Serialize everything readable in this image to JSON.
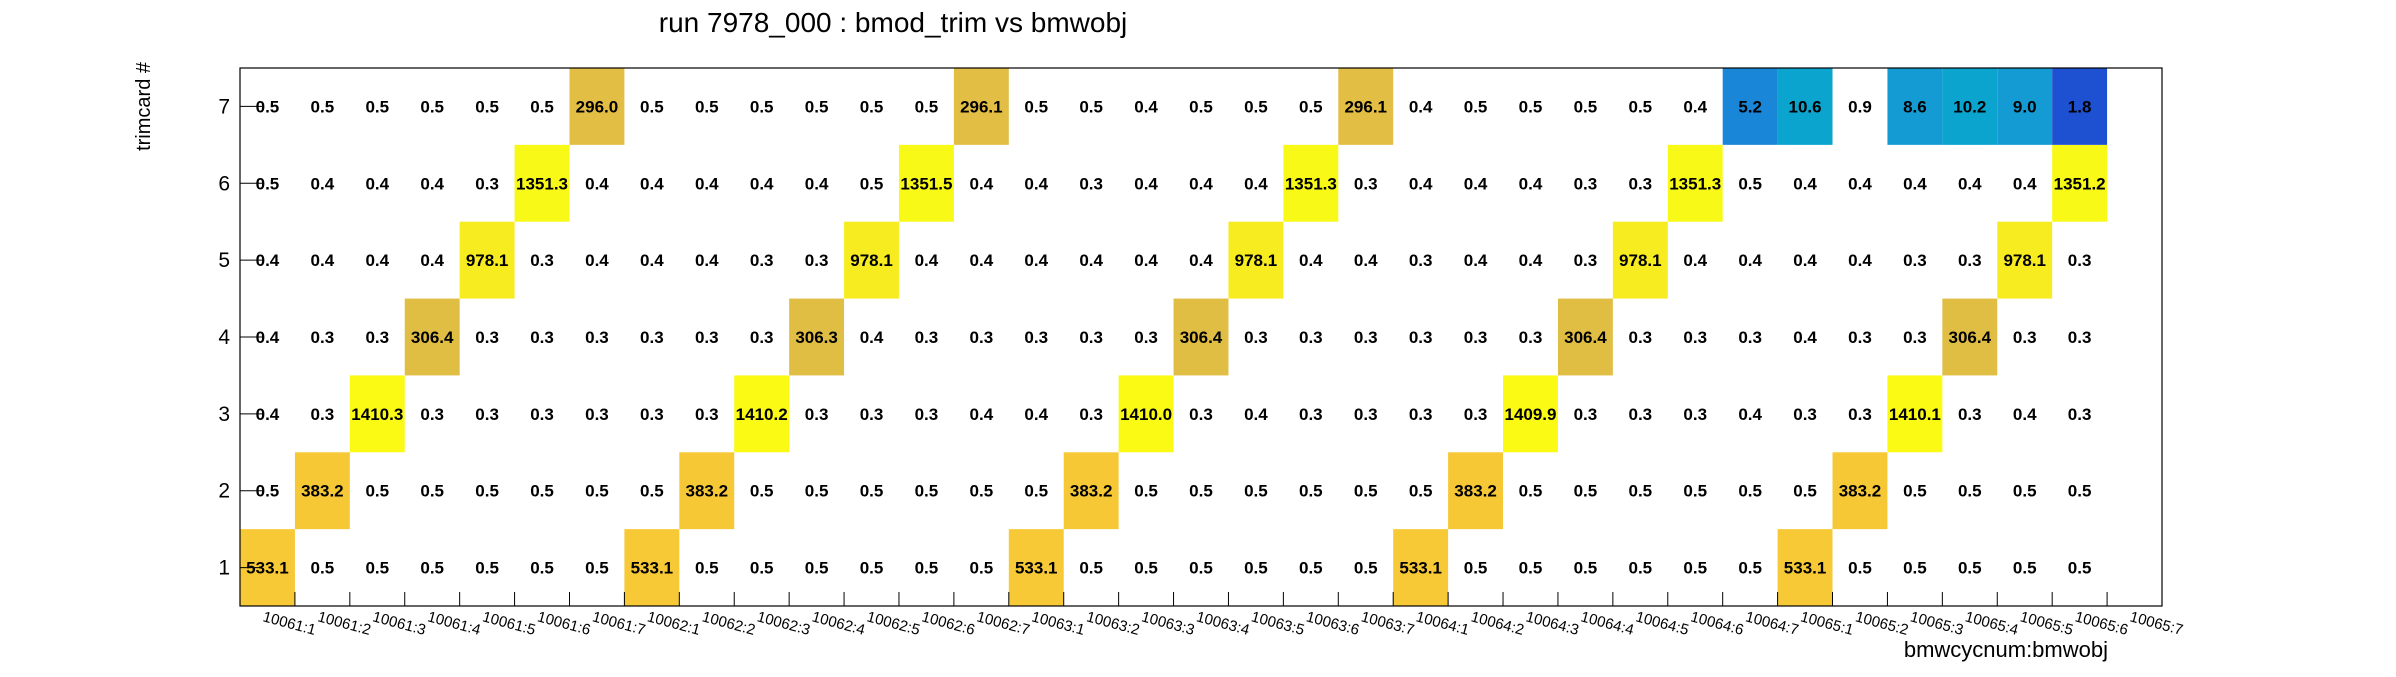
{
  "chart_data": {
    "type": "heatmap",
    "title": "run 7978_000 : bmod_trim vs bmwobj",
    "xlabel": "bmwcycnum:bmwobj",
    "ylabel": "trimcard #",
    "x_categories": [
      "10061:1",
      "10061:2",
      "10061:3",
      "10061:4",
      "10061:5",
      "10061:6",
      "10061:7",
      "10062:1",
      "10062:2",
      "10062:3",
      "10062:4",
      "10062:5",
      "10062:6",
      "10062:7",
      "10063:1",
      "10063:2",
      "10063:3",
      "10063:4",
      "10063:5",
      "10063:6",
      "10063:7",
      "10064:1",
      "10064:2",
      "10064:3",
      "10064:4",
      "10064:5",
      "10064:6",
      "10064:7",
      "10065:1",
      "10065:2",
      "10065:3",
      "10065:4",
      "10065:5",
      "10065:6",
      "10065:7"
    ],
    "y_categories": [
      "1",
      "2",
      "3",
      "4",
      "5",
      "6",
      "7"
    ],
    "values": [
      [
        533.1,
        0.5,
        0.5,
        0.5,
        0.5,
        0.5,
        0.5,
        533.1,
        0.5,
        0.5,
        0.5,
        0.5,
        0.5,
        0.5,
        533.1,
        0.5,
        0.5,
        0.5,
        0.5,
        0.5,
        0.5,
        533.1,
        0.5,
        0.5,
        0.5,
        0.5,
        0.5,
        0.5,
        533.1,
        0.5,
        0.5,
        0.5,
        0.5,
        0.5,
        null
      ],
      [
        0.5,
        383.2,
        0.5,
        0.5,
        0.5,
        0.5,
        0.5,
        0.5,
        383.2,
        0.5,
        0.5,
        0.5,
        0.5,
        0.5,
        0.5,
        383.2,
        0.5,
        0.5,
        0.5,
        0.5,
        0.5,
        0.5,
        383.2,
        0.5,
        0.5,
        0.5,
        0.5,
        0.5,
        0.5,
        383.2,
        0.5,
        0.5,
        0.5,
        0.5,
        null
      ],
      [
        0.4,
        0.3,
        1410.3,
        0.3,
        0.3,
        0.3,
        0.3,
        0.3,
        0.3,
        1410.2,
        0.3,
        0.3,
        0.3,
        0.4,
        0.4,
        0.3,
        1410.0,
        0.3,
        0.4,
        0.3,
        0.3,
        0.3,
        0.3,
        1409.9,
        0.3,
        0.3,
        0.3,
        0.4,
        0.3,
        0.3,
        1410.1,
        0.3,
        0.4,
        0.3,
        null
      ],
      [
        0.4,
        0.3,
        0.3,
        306.4,
        0.3,
        0.3,
        0.3,
        0.3,
        0.3,
        0.3,
        306.3,
        0.4,
        0.3,
        0.3,
        0.3,
        0.3,
        0.3,
        306.4,
        0.3,
        0.3,
        0.3,
        0.3,
        0.3,
        0.3,
        306.4,
        0.3,
        0.3,
        0.3,
        0.4,
        0.3,
        0.3,
        306.4,
        0.3,
        0.3,
        null
      ],
      [
        0.4,
        0.4,
        0.4,
        0.4,
        978.1,
        0.3,
        0.4,
        0.4,
        0.4,
        0.3,
        0.3,
        978.1,
        0.4,
        0.4,
        0.4,
        0.4,
        0.4,
        0.4,
        978.1,
        0.4,
        0.4,
        0.3,
        0.4,
        0.4,
        0.3,
        978.1,
        0.4,
        0.4,
        0.4,
        0.4,
        0.3,
        0.3,
        978.1,
        0.3,
        null
      ],
      [
        0.5,
        0.4,
        0.4,
        0.4,
        0.3,
        1351.3,
        0.4,
        0.4,
        0.4,
        0.4,
        0.4,
        0.5,
        1351.5,
        0.4,
        0.4,
        0.3,
        0.4,
        0.4,
        0.4,
        1351.3,
        0.3,
        0.4,
        0.4,
        0.4,
        0.3,
        0.3,
        1351.3,
        0.5,
        0.4,
        0.4,
        0.4,
        0.4,
        0.4,
        1351.2,
        null
      ],
      [
        0.5,
        0.5,
        0.5,
        0.5,
        0.5,
        0.5,
        296.0,
        0.5,
        0.5,
        0.5,
        0.5,
        0.5,
        0.5,
        296.1,
        0.5,
        0.5,
        0.4,
        0.5,
        0.5,
        0.5,
        296.1,
        0.4,
        0.5,
        0.5,
        0.5,
        0.5,
        0.4,
        5.2,
        10.6,
        0.9,
        8.6,
        10.2,
        9.0,
        1.8,
        null
      ]
    ],
    "colors": {
      "axis": "#000000",
      "text": "#000000",
      "cell_296": "#e3be45",
      "cell_306": "#e0be44",
      "cell_383": "#f6c836",
      "cell_533": "#f7c937",
      "cell_978": "#f7ec20",
      "cell_1351": "#f9f917",
      "cell_1410": "#fafa14",
      "cell_low_1": "#1e50d2",
      "cell_low_5": "#1a86d8",
      "cell_low_9": "#159bd3",
      "cell_low_10": "#0ba4cf"
    }
  }
}
